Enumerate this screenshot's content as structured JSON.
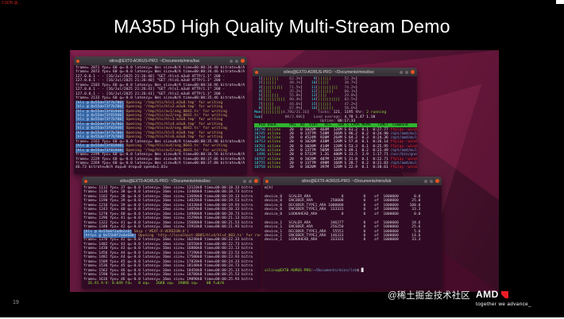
{
  "slide": {
    "title": "MA35D High Quality Multi-Stream Demo",
    "page_number": "19",
    "top_left_watermark": "CSDN @...",
    "bottom_watermark": "@稀土掘金技术社区",
    "amd_brand": "AMD",
    "amd_tagline": "together we advance_"
  },
  "colors": {
    "terminal_bg": "#300a24",
    "titlebar": "#454045",
    "ubuntu_orange": "#e95420",
    "amd_red": "#ed1c24",
    "wallpaper": "#6e1b45",
    "hls_prefix_bg": "#3465a4",
    "htop_header_bg": "#2fb52f"
  },
  "terminals": {
    "t1": {
      "title": "xilinx@EXT0-AORUS-PRO: ~/Documents/mins/bsc",
      "lines": [
        "frame= 2071 fps= 60 q=-0.0 latency= 0ms size=N/A time=00:00:34.40 bitrate=N/A",
        "frame= 2073 fps= 60 q=-0.0 latency= 0ms size=N/A time=00:00:34.46 bitrate=N/A",
        "127.0.0.1 - - [16/Jul/2025 21:26:40] \"GET /hls4.m3u8 HTTP/1.1\" 200 -",
        "127.0.0.1 - - [16/Jul/2025 21:26:40] \"GET /hls6.m3u8 HTTP/1.1\" 200 -",
        "frame= 2103 fps= 60 q=-0.0 latency= 0ms size=N/A time=00:00:34.96 bitrate=N/A",
        "127.0.0.1 - - [16/Jul/2025 21:26:41] \"GET /hls1.m3u8 HTTP/1.1\" 200 -",
        "127.0.0.1 - - [16/Jul/2025 21:26:41] \"GET /hls2.m3u8 HTTP/1.1\" 200 -",
        "frame= 2133 fps= 60 q=-0.0 latency= 0ms size=N/A time=00:00:35.46 bitrate=N/A",
        [
          [
            "[hls @ 0x55de73f7b700]",
            "hls"
          ],
          [
            " Opening '/tmp/hls/hls1.m3u8.tmp' for writing",
            "tan"
          ]
        ],
        [
          [
            "[hls @ 0x55de73f7b700]",
            "hls"
          ],
          [
            " Opening '/tmp/hls/hls2.m3u8.tmp' for writing",
            "tan"
          ]
        ],
        [
          [
            "[hls @ 0x55de73f81940]",
            "hls"
          ],
          [
            " Opening '/tmp/hls/av1/seg_0042.ts' for writing",
            "tan"
          ]
        ],
        [
          [
            "[hls @ 0x55de73f81940]",
            "hls"
          ],
          [
            " Opening '/tmp/hls/av2/seg_0042.ts' for writing",
            "tan"
          ]
        ],
        [
          [
            "[hls @ 0x55de73f7b700]",
            "hls"
          ],
          [
            " Opening '/tmp/hls/hls3.m3u8.tmp' for writing",
            "tan"
          ]
        ],
        [
          [
            "[hls @ 0x55de73f7b700]",
            "hls"
          ],
          [
            " Opening '/tmp/hls/hls4.m3u8.tmp' for writing",
            "tan"
          ]
        ],
        [
          [
            "[hls @ 0x55de73f81940]",
            "hls"
          ],
          [
            " Opening '/tmp/hls/av3/seg_0042.ts' for writing",
            "tan"
          ]
        ],
        [
          [
            "[hls @ 0x55de73f7b700]",
            "hls"
          ],
          [
            " Opening '/tmp/hls/hls5.m3u8.tmp' for writing",
            "tan"
          ]
        ],
        [
          [
            "[hls @ 0x55de73f7b700]",
            "hls"
          ],
          [
            " Opening '/tmp/hls/hls6.m3u8.tmp' for writing",
            "tan"
          ]
        ],
        "frame= 2163 fps= 60 q=-0.0 latency= 0ms size=N/A time=00:00:35.96 bitrate=N/A",
        [
          [
            "[hls @ 0x55de73f81940]",
            "hls"
          ],
          [
            " Opening '/tmp/hls/av4/seg_0043.ts' for writing",
            "tan"
          ]
        ],
        [
          [
            "[hls @ 0x55de73f81940]",
            "hls"
          ],
          [
            " Opening '/tmp/hls/av5/seg_0043.ts' for writing",
            "tan"
          ]
        ],
        "frame= 2199 fps= 60 q=-0.0 latency= 0ms size=N/A time=00:00:36.56 bitrate=N/A",
        "frame= 2229 fps= 60 q=-0.0 latency= 0ms size=N/A time=00:00:37.06 bitrate=N/A",
        "frame= 2269 fps= 60 q=-0.0 latency= 0ms size=N/A time=00:00:37.80 bitrate=N/A",
        "46.73 bitrate=N/A dup=0 drop=0 speed=1.01x"
      ]
    },
    "t2": {
      "title": "xilinx@EXT0-AORUS-PRO: ~/Documents/mins/bsc",
      "lines": [
        [
          [
            "  1",
            "cyan"
          ],
          [
            "[",
            "wt"
          ],
          [
            "|||||||     ",
            "grn"
          ],
          [
            "62.3%",
            "dim"
          ],
          [
            "]   ",
            "wt"
          ],
          [
            "  9",
            "cyan"
          ],
          [
            "[",
            "wt"
          ],
          [
            "||||||      ",
            "grn"
          ],
          [
            "52.3%",
            "dim"
          ],
          [
            "]",
            "wt"
          ]
        ],
        [
          [
            "  2",
            "cyan"
          ],
          [
            "[",
            "wt"
          ],
          [
            "||||||      ",
            "grn"
          ],
          [
            "48.1%",
            "dim"
          ],
          [
            "]   ",
            "wt"
          ],
          [
            " 10",
            "cyan"
          ],
          [
            "[",
            "wt"
          ],
          [
            "|||||       ",
            "grn"
          ],
          [
            "38.7%",
            "dim"
          ],
          [
            "]",
            "wt"
          ]
        ],
        [
          [
            "  3",
            "cyan"
          ],
          [
            "[",
            "wt"
          ],
          [
            "|||||||||   ",
            "grn"
          ],
          [
            "71.5%",
            "dim"
          ],
          [
            "]   ",
            "wt"
          ],
          [
            " 11",
            "cyan"
          ],
          [
            "[",
            "wt"
          ],
          [
            "|||||||||   ",
            "grn"
          ],
          [
            "74.2%",
            "dim"
          ],
          [
            "]",
            "wt"
          ]
        ],
        [
          [
            "  4",
            "cyan"
          ],
          [
            "[",
            "wt"
          ],
          [
            "||||        ",
            "grn"
          ],
          [
            "35.2%",
            "dim"
          ],
          [
            "]   ",
            "wt"
          ],
          [
            " 12",
            "cyan"
          ],
          [
            "[",
            "wt"
          ],
          [
            "|||||||     ",
            "grn"
          ],
          [
            "60.1%",
            "dim"
          ],
          [
            "]",
            "wt"
          ]
        ],
        [
          [
            "  5",
            "cyan"
          ],
          [
            "[",
            "wt"
          ],
          [
            "|||||||     ",
            "grn"
          ],
          [
            "55.8%",
            "dim"
          ],
          [
            "]   ",
            "wt"
          ],
          [
            " 13",
            "cyan"
          ],
          [
            "[",
            "wt"
          ],
          [
            "||||        ",
            "grn"
          ],
          [
            "29.8%",
            "dim"
          ],
          [
            "]",
            "wt"
          ]
        ],
        [
          [
            "  6",
            "cyan"
          ],
          [
            "[",
            "wt"
          ],
          [
            "||||||||||  ",
            "grn"
          ],
          [
            "80.4%",
            "dim"
          ],
          [
            "]   ",
            "wt"
          ],
          [
            " 14",
            "cyan"
          ],
          [
            "[",
            "wt"
          ],
          [
            "||||||||||  ",
            "grn"
          ],
          [
            "83.5%",
            "dim"
          ],
          [
            "]",
            "wt"
          ]
        ],
        [
          [
            "  7",
            "cyan"
          ],
          [
            "[",
            "wt"
          ],
          [
            "|||||       ",
            "grn"
          ],
          [
            "44.6%",
            "dim"
          ],
          [
            "]   ",
            "wt"
          ],
          [
            " 15",
            "cyan"
          ],
          [
            "[",
            "wt"
          ],
          [
            "||||||      ",
            "grn"
          ],
          [
            "47.2%",
            "dim"
          ],
          [
            "]",
            "wt"
          ]
        ],
        [
          [
            "  8",
            "cyan"
          ],
          [
            "[",
            "wt"
          ],
          [
            "||||||||    ",
            "grn"
          ],
          [
            "67.9%",
            "dim"
          ],
          [
            "]   ",
            "wt"
          ],
          [
            " 16",
            "cyan"
          ],
          [
            "[",
            "wt"
          ],
          [
            "|||||||     ",
            "grn"
          ],
          [
            "58.6%",
            "dim"
          ],
          [
            "]",
            "wt"
          ]
        ],
        [
          [
            "Mem",
            "cyan"
          ],
          [
            "[",
            "wt"
          ],
          [
            "|||||||||",
            "grn"
          ],
          [
            "4.78G/31.1G",
            "dim"
          ],
          [
            "]    ",
            "wt"
          ],
          [
            "Tasks: ",
            "dim"
          ],
          [
            "121",
            "wt"
          ],
          [
            ", ",
            "dim"
          ],
          [
            "1195 thr",
            "wt"
          ],
          [
            "; ",
            "dim"
          ],
          [
            "2 running",
            "grn"
          ]
        ],
        [
          [
            "Swp",
            "cyan"
          ],
          [
            "[",
            "wt"
          ],
          [
            "      ",
            "grn"
          ],
          [
            "    0K/2.00G",
            "dim"
          ],
          [
            "]    ",
            "wt"
          ],
          [
            "Load average: ",
            "dim"
          ],
          [
            "4.78 1.47 1.10",
            "wt"
          ]
        ],
        [
          [
            "                              ",
            "wt"
          ],
          [
            "Uptime: ",
            "dim"
          ],
          [
            "00:17:33",
            "wt"
          ]
        ],
        [
          [
            "  PID USER      PRI  NI  VIRT   RES   SHR S CPU% MEM%   TIME+  Command           ",
            "hdr"
          ]
        ],
        [
          [
            "10750 ",
            "cyan"
          ],
          [
            "xilinx    ",
            "grn"
          ],
          [
            "20   0 1020M  464M  128M S 61.2  0.1  0:27.77 ",
            "wt"
          ],
          [
            "ffplay -window_t",
            "red"
          ]
        ],
        [
          [
            "10745 ",
            "cyan"
          ],
          [
            "xilinx    ",
            "grn"
          ],
          [
            "20   0 1377M  538M  166M S 96.2  0.2  0:24.90 ",
            "wt"
          ],
          [
            "/opt/amd/multi/b",
            "blue"
          ]
        ],
        [
          [
            "10744 ",
            "cyan"
          ],
          [
            "xilinx    ",
            "grn"
          ],
          [
            "20   0 4524M  920M  264M S 64.2  0.3  0:24.36 ",
            "wt"
          ],
          [
            "/opt/amd/multi/b",
            "blue"
          ]
        ],
        [
          [
            "10753 ",
            "cyan"
          ],
          [
            "xilinx    ",
            "grn"
          ],
          [
            "20   0 1020M  438M  128M S 57.8  0.1  0:26.14 ",
            "wt"
          ],
          [
            "ffplay -window_t",
            "red"
          ]
        ],
        [
          [
            "10761 ",
            "cyan"
          ],
          [
            "xilinx    ",
            "grn"
          ],
          [
            "20   0 1020M  414M  128M S 53.3  0.1  0:25.95 ",
            "wt"
          ],
          [
            "ffplay -window_t",
            "red"
          ]
        ],
        [
          [
            "10766 ",
            "cyan"
          ],
          [
            "xilinx    ",
            "grn"
          ],
          [
            "20   0 1377M  505M  166M S 49.1  0.2  0:23.49 ",
            "wt"
          ],
          [
            "/opt/amd/multi/b",
            "blue"
          ]
        ],
        [
          [
            " 1496 ",
            "cyan"
          ],
          [
            "xilinx    ",
            "grn"
          ],
          [
            "20   0 5732M  1.2G  480M S 33.5  3.9  1:17.71 ",
            "wt"
          ],
          [
            "/usr/bin/gnome-s",
            "blue"
          ]
        ],
        [
          [
            "10747 ",
            "cyan"
          ],
          [
            "xilinx    ",
            "grn"
          ],
          [
            "20   0 1020M  407M  128M S 31.0  0.1  0:22.71 ",
            "wt"
          ],
          [
            "ffplay -window_t",
            "red"
          ]
        ],
        [
          [
            "10755 ",
            "cyan"
          ],
          [
            "xilinx    ",
            "grn"
          ],
          [
            "20   0 1377M  498M  166M S 28.7  0.2  0:21.83 ",
            "wt"
          ],
          [
            "/opt/amd/multi/b",
            "blue"
          ]
        ],
        [
          [
            "10758 ",
            "cyan"
          ],
          [
            "xilinx    ",
            "grn"
          ],
          [
            "20   0 1020M  397M  128M S 22.9  0.1  0:20.61 ",
            "wt"
          ],
          [
            "ffplay -window_t",
            "red"
          ]
        ]
      ]
    },
    "t3": {
      "title": "xilinx@EXT0-AORUS-PRO: ~/Documents/mins/bsc",
      "lines": [
        "frame= 1112 fps= 37 q=-0.0 latency= 16ms size= 13110kB time=00:00:18.33 bitra",
        "frame= 1136 fps= 38 q=-0.0 latency= 16ms size= 13400kB time=00:00:18.73 bitra",
        "frame= 1162 fps= 38 q=-0.0 latency= 16ms size= 13690kB time=00:00:19.13 bitra",
        "frame= 1190 fps= 39 q=-0.0 latency= 16ms size= 14020kB time=00:00:19.53 bitra",
        "frame= 1216 fps= 39 q=-0.0 latency= 16ms size= 14330kB time=00:00:19.93 bitra",
        "frame= 1243 fps= 40 q=-0.0 latency= 16ms size= 14650kB time=00:00:20.33 bitra",
        "frame= 1270 fps= 40 q=-0.0 latency= 16ms size= 14980kB time=00:00:20.73 bitra",
        "frame= 1296 fps= 41 q=-0.0 latency= 16ms size= 15290kB time=00:00:21.13 bitra",
        "frame= 1322 fps= 41 q=-0.0 latency= 16ms size= 15600kB time=00:00:21.53 bitra",
        "frame= 1348 fps= 42 q=-0.0 latency= 16ms size= 15910kB time=00:00:21.93 bitra",
        [
          [
            "[hls @ 0x55b8f2a4b2c0]",
            "hls"
          ],
          [
            " Skip ('#EXT-X-VERSION:4')",
            "tan"
          ]
        ],
        [
          [
            "[https @ 0x55b8f2a4e680]",
            "hls"
          ],
          [
            " Opening 'http://localhost:8085/hls4/hls4_003.ts' for reading",
            "tan"
          ]
        ],
        "frame= 1376 fps= 42 q=-0.0 latency= 16ms size= 16240kB time=00:00:22.33 bitra",
        "frame= 1402 fps= 43 q=-0.0 latency= 16ms size= 16550kB time=00:00:22.73 bitra",
        "frame= 1430 fps= 43 q=-0.0 latency= 16ms size= 16880kB time=00:00:23.13 bitra",
        "frame= 1456 fps= 44 q=-0.0 latency= 16ms size= 17190kB time=00:00:23.53 bitra",
        "frame= 1482 fps= 44 q=-0.0 latency= 16ms size= 17500kB time=00:00:23.93 bitra",
        "frame= 1509 fps= 45 q=-0.0 latency= 16ms size= 17820kB time=00:00:24.33 bitra",
        "frame= 1536 fps= 45 q=-0.0 latency= 16ms size= 18140kB time=00:00:24.73 bitra",
        "frame= 1562 fps= 46 q=-0.0 latency= 16ms size= 18450kB time=00:00:25.13 bitra",
        "frame= 1590 fps= 46 q=-0.0 latency= 16ms size= 18780kB time=00:00:25.53 bitra",
        "frame= 1616 fps= 46 q=-0.0 latency= 16ms size= 19090kB time=00:00:25.93 bitra",
        [
          [
            "  26.91 A-V: 0.049 fd=   0 aq=   26KB vq=  398KB sq=    0B f=0/0",
            "grn"
          ]
        ]
      ]
    },
    "t4": {
      "title": "xilinx@EXT0-AORUS-PRO: ~/Documents/mins/lsb",
      "lines": [
        "m[h]",
        [],
        "device_0   SCALER_ARA              0         0    of  1000000       0.0",
        "device_0   ENCODER_ARA        250000         0    of  1000000      25.0",
        "device_0   DECODER_TYPE1_ARA 1000000         0    of  1000000     100.0",
        "device_0   ENCODER_TYPE1_ARA  333333         0    of  1000000      33.3",
        "device_0   LOOKAHEAD_ARA           0         0    of  1000000       0.0",
        [],
        "device_1   SCALER_ARA         346277         0    of  1000000      34.6",
        "device_1   ENCODER_ARA        256250         0    of  1000000      25.6",
        "device_1   DECODER_TYPE1_ARA   55551         0    of  1000000       5.6",
        "device_1   ENCODER_TYPE1_ARA  146333         0    of  1000000      14.6",
        "device_1   LOOKAHEAD_ARA      333333         0    of  1000000      33.3",
        [],
        [],
        [],
        [],
        [],
        [],
        [
          [
            "xilinx@EXT0-AORUS-PRO",
            "grn"
          ],
          [
            ":",
            "wt"
          ],
          [
            "~/Documents/mins/lsb",
            "blue"
          ],
          [
            "$ ",
            "wt"
          ],
          [
            "█",
            "wt"
          ]
        ]
      ]
    }
  }
}
